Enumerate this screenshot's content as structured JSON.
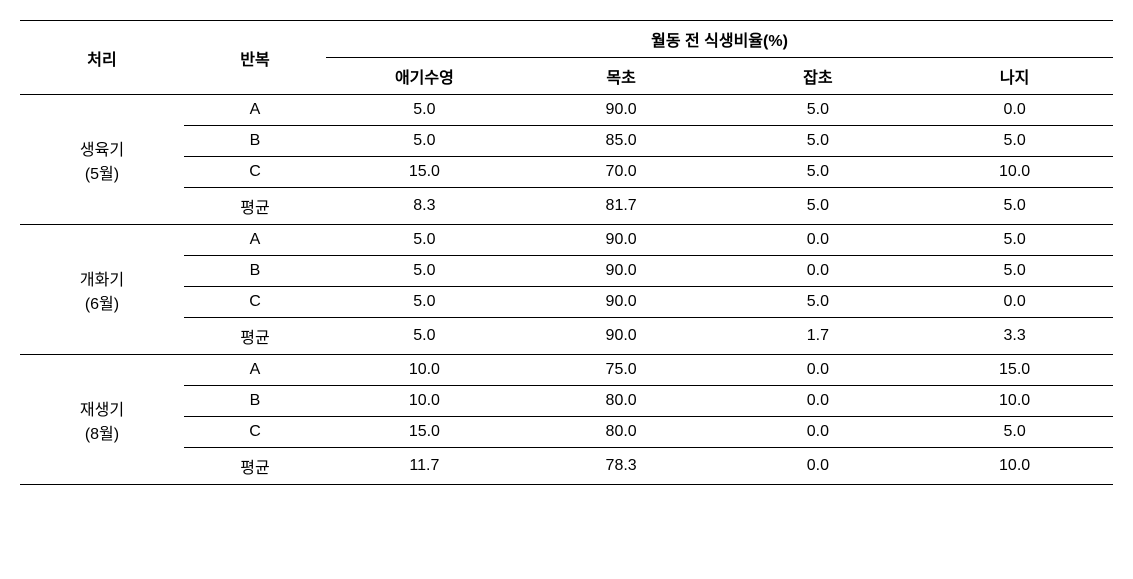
{
  "table": {
    "header": {
      "treatment": "처리",
      "replication": "반복",
      "group_header": "월동 전   식생비율(%)",
      "sub_columns": [
        "애기수영",
        "목초",
        "잡초",
        "나지"
      ]
    },
    "groups": [
      {
        "title_line1": "생육기",
        "title_line2": "(5월)",
        "rows": [
          {
            "rep": "A",
            "values": [
              "5.0",
              "90.0",
              "5.0",
              "0.0"
            ]
          },
          {
            "rep": "B",
            "values": [
              "5.0",
              "85.0",
              "5.0",
              "5.0"
            ]
          },
          {
            "rep": "C",
            "values": [
              "15.0",
              "70.0",
              "5.0",
              "10.0"
            ]
          },
          {
            "rep": "평균",
            "values": [
              "8.3",
              "81.7",
              "5.0",
              "5.0"
            ]
          }
        ]
      },
      {
        "title_line1": "개화기",
        "title_line2": "(6월)",
        "rows": [
          {
            "rep": "A",
            "values": [
              "5.0",
              "90.0",
              "0.0",
              "5.0"
            ]
          },
          {
            "rep": "B",
            "values": [
              "5.0",
              "90.0",
              "0.0",
              "5.0"
            ]
          },
          {
            "rep": "C",
            "values": [
              "5.0",
              "90.0",
              "5.0",
              "0.0"
            ]
          },
          {
            "rep": "평균",
            "values": [
              "5.0",
              "90.0",
              "1.7",
              "3.3"
            ]
          }
        ]
      },
      {
        "title_line1": "재생기",
        "title_line2": "(8월)",
        "rows": [
          {
            "rep": "A",
            "values": [
              "10.0",
              "75.0",
              "0.0",
              "15.0"
            ]
          },
          {
            "rep": "B",
            "values": [
              "10.0",
              "80.0",
              "0.0",
              "10.0"
            ]
          },
          {
            "rep": "C",
            "values": [
              "15.0",
              "80.0",
              "0.0",
              "5.0"
            ]
          },
          {
            "rep": "평균",
            "values": [
              "11.7",
              "78.3",
              "0.0",
              "10.0"
            ]
          }
        ]
      }
    ]
  }
}
